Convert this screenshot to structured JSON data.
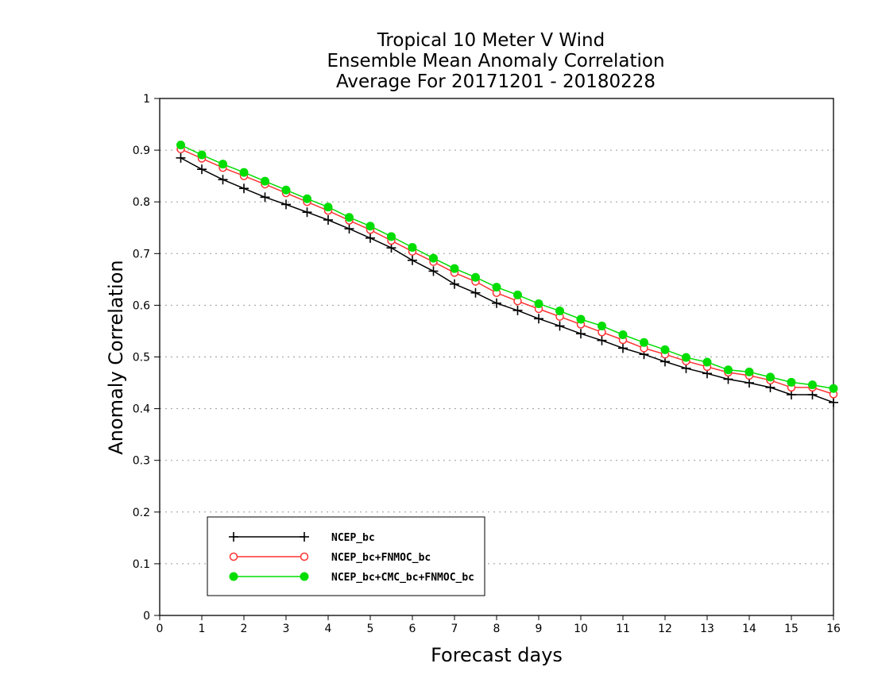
{
  "chart_data": {
    "type": "line",
    "title": [
      "Tropical 10 Meter V Wind",
      "Ensemble Mean Anomaly Correlation",
      "Average For 20171201 - 20180228"
    ],
    "xlabel": "Forecast days",
    "ylabel": "Anomaly Correlation",
    "xlim": [
      0,
      16
    ],
    "ylim": [
      0,
      1
    ],
    "xticks": [
      "0",
      "1",
      "2",
      "3",
      "4",
      "5",
      "6",
      "7",
      "8",
      "9",
      "10",
      "11",
      "12",
      "13",
      "14",
      "15",
      "16"
    ],
    "yticks": [
      "0",
      "0.1",
      "0.2",
      "0.3",
      "0.4",
      "0.5",
      "0.6",
      "0.7",
      "0.8",
      "0.9",
      "1"
    ],
    "grid": true,
    "legend_position": "bottom-left",
    "x": [
      0.5,
      1,
      1.5,
      2,
      2.5,
      3,
      3.5,
      4,
      4.5,
      5,
      5.5,
      6,
      6.5,
      7,
      7.5,
      8,
      8.5,
      9,
      9.5,
      10,
      10.5,
      11,
      11.5,
      12,
      12.5,
      13,
      13.5,
      14,
      14.5,
      15,
      15.5,
      16
    ],
    "series": [
      {
        "name": "NCEP_bc",
        "color": "#000000",
        "marker": "plus",
        "values": [
          0.885,
          0.863,
          0.843,
          0.826,
          0.809,
          0.795,
          0.78,
          0.765,
          0.748,
          0.73,
          0.711,
          0.687,
          0.666,
          0.641,
          0.624,
          0.604,
          0.59,
          0.574,
          0.56,
          0.545,
          0.532,
          0.517,
          0.505,
          0.491,
          0.478,
          0.468,
          0.457,
          0.45,
          0.441,
          0.427,
          0.427,
          0.412
        ]
      },
      {
        "name": "NCEP_bc+FNMOC_bc",
        "color": "#ff3333",
        "marker": "open-circle",
        "values": [
          0.902,
          0.884,
          0.866,
          0.85,
          0.834,
          0.817,
          0.8,
          0.783,
          0.764,
          0.746,
          0.725,
          0.704,
          0.684,
          0.663,
          0.646,
          0.624,
          0.608,
          0.593,
          0.578,
          0.563,
          0.548,
          0.533,
          0.517,
          0.505,
          0.492,
          0.481,
          0.47,
          0.464,
          0.455,
          0.441,
          0.441,
          0.428
        ]
      },
      {
        "name": "NCEP_bc+CMC_bc+FNMOC_bc",
        "color": "#00dd00",
        "marker": "filled-circle",
        "values": [
          0.91,
          0.891,
          0.873,
          0.857,
          0.84,
          0.823,
          0.806,
          0.79,
          0.77,
          0.753,
          0.733,
          0.712,
          0.691,
          0.671,
          0.654,
          0.635,
          0.62,
          0.603,
          0.589,
          0.573,
          0.56,
          0.543,
          0.528,
          0.514,
          0.499,
          0.49,
          0.475,
          0.471,
          0.461,
          0.451,
          0.446,
          0.439
        ]
      }
    ]
  }
}
